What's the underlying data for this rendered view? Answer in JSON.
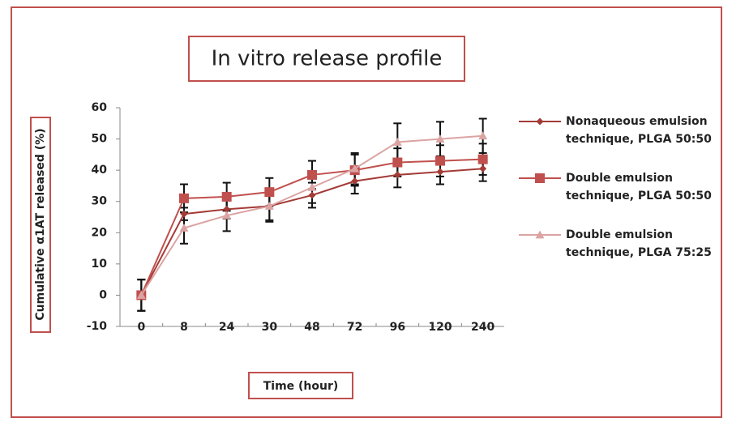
{
  "chart_data": {
    "type": "line",
    "title": "In vitro release profile",
    "x_label": "Time (hour)",
    "y_label": "Cumulative α1AT released (%)",
    "categories": [
      "0",
      "8",
      "24",
      "30",
      "48",
      "72",
      "96",
      "120",
      "240"
    ],
    "ylim": [
      -10,
      60
    ],
    "yticks": [
      -10,
      0,
      10,
      20,
      30,
      40,
      50,
      60
    ],
    "legend": "right",
    "series": [
      {
        "name": "Nonaqueous emulsion technique, PLGA 50:50",
        "color": "#a33b37",
        "marker": "diamond",
        "values": [
          0,
          26,
          27.5,
          28.5,
          32,
          36.5,
          38.5,
          39.5,
          40.5
        ],
        "errors": [
          5,
          2,
          3,
          4.5,
          4,
          4,
          4,
          4,
          4
        ]
      },
      {
        "name": "Double emulsion technique, PLGA 50:50",
        "color": "#c0504d",
        "marker": "square",
        "values": [
          0,
          31,
          31.5,
          33,
          38.5,
          40,
          42.5,
          43,
          43.5
        ],
        "errors": [
          5,
          4.5,
          4.5,
          4.5,
          4.5,
          5,
          4.5,
          5,
          5
        ]
      },
      {
        "name": "Double emulsion technique, PLGA 75:25",
        "color": "#dba4a3",
        "marker": "triangle",
        "values": [
          0,
          21.5,
          25.5,
          28.5,
          34.5,
          40.5,
          49,
          50,
          51
        ],
        "errors": [
          5,
          5,
          5,
          5,
          5,
          5,
          6,
          5.5,
          5.5
        ]
      }
    ]
  }
}
